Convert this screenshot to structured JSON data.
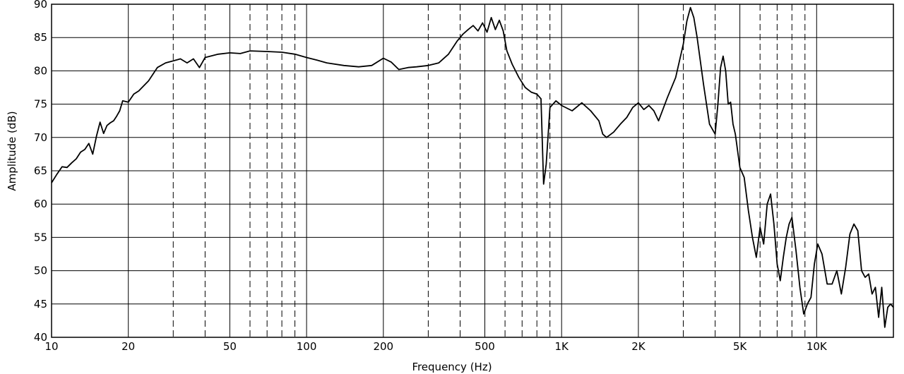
{
  "chart_data": {
    "type": "line",
    "title": "",
    "xlabel": "Frequency (Hz)",
    "ylabel": "Amplitude (dB)",
    "x_scale": "log",
    "xlim": [
      10,
      20000
    ],
    "ylim": [
      40,
      90
    ],
    "grid": true,
    "legend": "none",
    "y_ticks": [
      {
        "value": 40,
        "label": "40"
      },
      {
        "value": 45,
        "label": "45"
      },
      {
        "value": 50,
        "label": "50"
      },
      {
        "value": 55,
        "label": "55"
      },
      {
        "value": 60,
        "label": "60"
      },
      {
        "value": 65,
        "label": "65"
      },
      {
        "value": 70,
        "label": "70"
      },
      {
        "value": 75,
        "label": "75"
      },
      {
        "value": 80,
        "label": "80"
      },
      {
        "value": 85,
        "label": "85"
      },
      {
        "value": 90,
        "label": "90"
      }
    ],
    "x_ticks": [
      {
        "value": 10,
        "label": "10"
      },
      {
        "value": 20,
        "label": "20"
      },
      {
        "value": 50,
        "label": "50"
      },
      {
        "value": 100,
        "label": "100"
      },
      {
        "value": 200,
        "label": "200"
      },
      {
        "value": 500,
        "label": "500"
      },
      {
        "value": 1000,
        "label": "1K"
      },
      {
        "value": 2000,
        "label": "2K"
      },
      {
        "value": 5000,
        "label": "5K"
      },
      {
        "value": 10000,
        "label": "10K"
      }
    ],
    "major_gridlines_x": [
      10,
      20,
      50,
      100,
      200,
      500,
      1000,
      2000,
      5000,
      10000
    ],
    "minor_gridlines_x": [
      30,
      40,
      60,
      70,
      80,
      90,
      300,
      400,
      600,
      700,
      800,
      900,
      3000,
      4000,
      6000,
      7000,
      8000,
      9000
    ],
    "series": [
      {
        "color": "#000000",
        "x": [
          10,
          10.5,
          11,
          11.5,
          12,
          12.5,
          13,
          13.5,
          14,
          14.5,
          15,
          15.5,
          16,
          16.5,
          17,
          17.5,
          18,
          18.5,
          19,
          20,
          21,
          22,
          24,
          26,
          28,
          30,
          32,
          34,
          36,
          38,
          40,
          45,
          50,
          55,
          60,
          70,
          80,
          90,
          100,
          110,
          120,
          140,
          160,
          180,
          200,
          215,
          230,
          250,
          270,
          300,
          330,
          360,
          390,
          410,
          430,
          450,
          470,
          490,
          510,
          530,
          550,
          570,
          590,
          610,
          640,
          680,
          720,
          760,
          800,
          830,
          850,
          870,
          900,
          950,
          1000,
          1100,
          1200,
          1300,
          1400,
          1450,
          1500,
          1600,
          1700,
          1800,
          1900,
          2000,
          2100,
          2200,
          2300,
          2400,
          2600,
          2800,
          3000,
          3100,
          3200,
          3300,
          3400,
          3600,
          3800,
          4000,
          4100,
          4200,
          4300,
          4400,
          4500,
          4600,
          4700,
          4800,
          5000,
          5200,
          5400,
          5600,
          5800,
          6000,
          6200,
          6400,
          6600,
          6800,
          7000,
          7200,
          7400,
          7600,
          7800,
          8000,
          8300,
          8600,
          8900,
          9200,
          9500,
          9800,
          10100,
          10500,
          11000,
          11500,
          12000,
          12500,
          13000,
          13500,
          14000,
          14500,
          15000,
          15500,
          16000,
          16500,
          17000,
          17500,
          18000,
          18500,
          19000,
          19500,
          20000
        ],
        "y": [
          63.2,
          64.5,
          65.6,
          65.5,
          66.2,
          66.8,
          67.8,
          68.2,
          69.1,
          67.5,
          70.2,
          72.3,
          70.6,
          71.8,
          72.2,
          72.5,
          73.2,
          74.0,
          75.5,
          75.3,
          76.5,
          77.0,
          78.5,
          80.5,
          81.2,
          81.5,
          81.8,
          81.2,
          81.8,
          80.5,
          82.0,
          82.5,
          82.7,
          82.6,
          83.0,
          82.9,
          82.8,
          82.5,
          82.0,
          81.6,
          81.2,
          80.8,
          80.6,
          80.8,
          81.9,
          81.3,
          80.2,
          80.5,
          80.6,
          80.8,
          81.2,
          82.5,
          84.5,
          85.5,
          86.2,
          86.8,
          86.0,
          87.2,
          85.8,
          88.0,
          86.2,
          87.6,
          86.0,
          83.0,
          81.0,
          79.0,
          77.5,
          76.8,
          76.5,
          75.8,
          63.0,
          66.0,
          74.5,
          75.5,
          74.8,
          74.0,
          75.2,
          74.0,
          72.5,
          70.5,
          70.0,
          70.8,
          72.0,
          73.0,
          74.5,
          75.2,
          74.2,
          74.8,
          74.0,
          72.5,
          76.0,
          79.0,
          84.0,
          87.5,
          89.5,
          88.0,
          85.0,
          78.0,
          72.0,
          70.5,
          75.0,
          80.5,
          82.2,
          80.0,
          75.0,
          75.3,
          72.0,
          70.5,
          65.5,
          64.0,
          59.0,
          55.0,
          52.0,
          56.5,
          54.0,
          60.0,
          61.5,
          57.0,
          51.0,
          48.5,
          52.0,
          55.0,
          57.0,
          58.0,
          53.0,
          47.5,
          43.5,
          45.0,
          46.0,
          51.0,
          54.0,
          52.5,
          48.0,
          48.0,
          50.0,
          46.5,
          50.5,
          55.5,
          57.0,
          56.0,
          50.0,
          49.0,
          49.5,
          46.5,
          47.5,
          43.0,
          47.5,
          41.5,
          44.5,
          45.0,
          44.5
        ]
      }
    ]
  }
}
